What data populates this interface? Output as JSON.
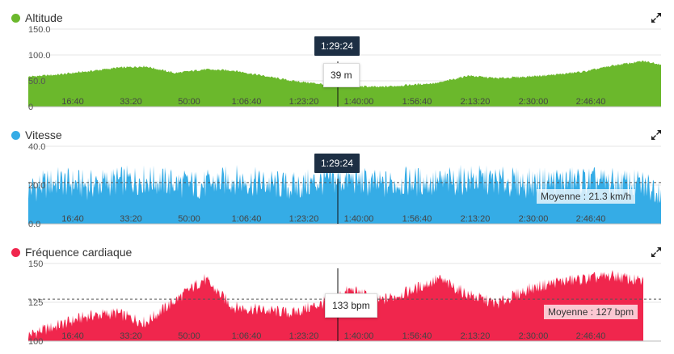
{
  "time_ticks": [
    "16:40",
    "33:20",
    "50:00",
    "1:06:40",
    "1:23:20",
    "1:40:00",
    "1:56:40",
    "2:13:20",
    "2:30:00",
    "2:46:40"
  ],
  "cursor": {
    "time_label": "1:29:24"
  },
  "colors": {
    "altitude": "#6bb82c",
    "speed": "#35ace6",
    "heart": "#f0264d",
    "tooltip_bg": "#1d2f44"
  },
  "icons": {
    "expand": "expand-icon"
  },
  "altitude": {
    "title": "Altitude",
    "value_label": "39 m",
    "y_ticks": [
      "150.0",
      "100.0",
      "50.0",
      "0"
    ]
  },
  "speed": {
    "title": "Vitesse",
    "average_label": "Moyenne : 21.3 km/h",
    "y_ticks": [
      "40.0",
      "20.0",
      "0.0"
    ]
  },
  "heart": {
    "title": "Fréquence cardiaque",
    "value_label": "133 bpm",
    "average_label": "Moyenne : 127 bpm",
    "y_ticks": [
      "150",
      "125",
      "100"
    ]
  },
  "chart_data": [
    {
      "type": "area",
      "title": "Altitude",
      "ylim": [
        0,
        150
      ],
      "x_unit": "elapsed time (h:mm:ss)",
      "x": [
        "0:00",
        "8:20",
        "16:40",
        "25:00",
        "33:20",
        "41:40",
        "50:00",
        "58:20",
        "1:06:40",
        "1:15:00",
        "1:23:20",
        "1:31:40",
        "1:40:00",
        "1:48:20",
        "1:56:40",
        "2:05:00",
        "2:13:20",
        "2:21:40",
        "2:30:00",
        "2:38:20",
        "2:46:40",
        "2:55:00",
        "3:00:00"
      ],
      "values": [
        58,
        62,
        68,
        75,
        78,
        65,
        72,
        70,
        60,
        50,
        44,
        40,
        38,
        42,
        46,
        60,
        55,
        58,
        62,
        68,
        80,
        88,
        82
      ],
      "series": [
        {
          "name": "Altitude",
          "values": [
            58,
            62,
            68,
            75,
            78,
            65,
            72,
            70,
            60,
            50,
            44,
            40,
            38,
            42,
            46,
            60,
            55,
            58,
            62,
            68,
            80,
            88,
            82
          ]
        }
      ]
    },
    {
      "type": "area",
      "title": "Vitesse",
      "ylim": [
        0,
        40
      ],
      "average": 21.3,
      "x": [
        "0:00",
        "8:20",
        "16:40",
        "25:00",
        "33:20",
        "41:40",
        "50:00",
        "58:20",
        "1:06:40",
        "1:15:00",
        "1:23:20",
        "1:31:40",
        "1:40:00",
        "1:48:20",
        "1:56:40",
        "2:05:00",
        "2:13:20",
        "2:21:40",
        "2:30:00",
        "2:38:20",
        "2:46:40",
        "2:55:00",
        "3:00:00"
      ],
      "values": [
        18,
        22,
        20,
        22,
        23,
        21,
        20,
        23,
        21,
        19,
        22,
        23,
        20,
        22,
        21,
        23,
        22,
        21,
        22,
        22,
        21,
        20,
        18
      ],
      "series": [
        {
          "name": "Vitesse",
          "values": [
            18,
            22,
            20,
            22,
            23,
            21,
            20,
            23,
            21,
            19,
            22,
            23,
            20,
            22,
            21,
            23,
            22,
            21,
            22,
            22,
            21,
            20,
            18
          ]
        }
      ]
    },
    {
      "type": "area",
      "title": "Fréquence cardiaque",
      "ylim": [
        100,
        150
      ],
      "average": 127,
      "x": [
        "0:00",
        "8:20",
        "16:40",
        "25:00",
        "33:20",
        "41:40",
        "50:00",
        "58:20",
        "1:06:40",
        "1:15:00",
        "1:23:20",
        "1:31:40",
        "1:40:00",
        "1:48:20",
        "1:56:40",
        "2:05:00",
        "2:13:20",
        "2:21:40",
        "2:30:00",
        "2:38:20",
        "2:46:40",
        "2:55:00"
      ],
      "values": [
        104,
        110,
        116,
        118,
        112,
        126,
        140,
        122,
        120,
        118,
        124,
        133,
        126,
        132,
        140,
        130,
        124,
        133,
        138,
        140,
        142,
        138
      ],
      "series": [
        {
          "name": "Fréquence cardiaque",
          "values": [
            104,
            110,
            116,
            118,
            112,
            126,
            140,
            122,
            120,
            118,
            124,
            133,
            126,
            132,
            140,
            130,
            124,
            133,
            138,
            140,
            142,
            138
          ]
        }
      ]
    }
  ]
}
